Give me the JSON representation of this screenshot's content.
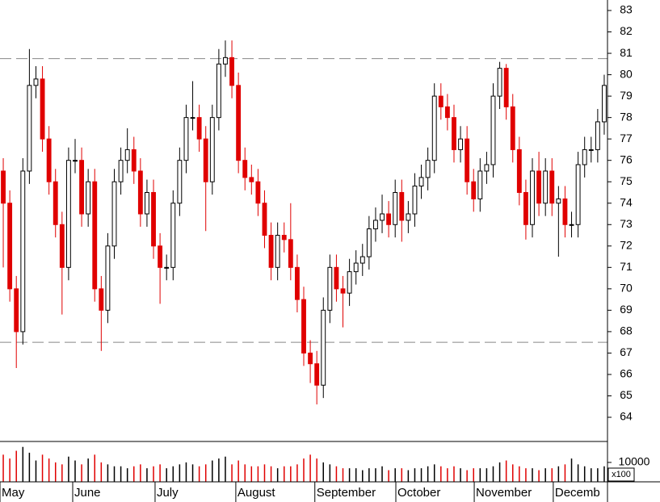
{
  "chart_data": {
    "type": "candlestick",
    "open": [
      75.5,
      74,
      70,
      68,
      75.5,
      79.5,
      79.8,
      77,
      75,
      73,
      71,
      76,
      76,
      73.5,
      75,
      70,
      69,
      72,
      75,
      76,
      76.5,
      75.5,
      73.5,
      74.5,
      72,
      71,
      71,
      74,
      76,
      78,
      78,
      77,
      75,
      78,
      80.5,
      80.8,
      79.5,
      76,
      75.2,
      75,
      74,
      72.5,
      71,
      72.5,
      72.3,
      71,
      69.5,
      67,
      66.5,
      65.5,
      69,
      71,
      70,
      69.8,
      70.8,
      71.2,
      71.5,
      72.8,
      73.2,
      73.5,
      73,
      74.5,
      73.2,
      73.5,
      74.8,
      75.2,
      76,
      79,
      78.5,
      78,
      76.5,
      77,
      75,
      74.2,
      75.5,
      75.8,
      79,
      80.3,
      78.5,
      76.5,
      74.5,
      73,
      75.5,
      74,
      75.5,
      74,
      74.2,
      73,
      73,
      75.8,
      76.5,
      76.5,
      77.8
    ],
    "high": [
      76.1,
      74.6,
      70.6,
      76.1,
      81.2,
      80.4,
      80.4,
      77.6,
      75.6,
      73.6,
      76.6,
      77,
      76.6,
      75.6,
      75.6,
      70.6,
      72.6,
      75.6,
      76.6,
      77.5,
      77.1,
      76.1,
      75.1,
      75.1,
      72.6,
      71.6,
      74.6,
      76.6,
      78.6,
      79.7,
      78.6,
      77.6,
      78.6,
      81.2,
      81.6,
      81.6,
      80.1,
      76.6,
      75.8,
      75.6,
      74.6,
      73.1,
      73.1,
      73.1,
      74,
      71.6,
      70.1,
      67.6,
      67.1,
      69.6,
      71.6,
      71.6,
      70.6,
      71.4,
      71.8,
      72.1,
      73.4,
      73.8,
      74.4,
      74.1,
      75.1,
      75.1,
      74.1,
      75.4,
      75.8,
      76.6,
      79.6,
      79.6,
      79.1,
      78.6,
      77.6,
      77.6,
      75.6,
      76.1,
      76.4,
      79.6,
      80.6,
      80.5,
      79.1,
      77.1,
      75.1,
      76.1,
      76.4,
      76.1,
      76.1,
      74.8,
      74.8,
      73.6,
      76.4,
      77.1,
      77.1,
      78.4,
      80
    ],
    "low": [
      71,
      69.4,
      66.3,
      67.4,
      74.9,
      78.9,
      76.4,
      74.4,
      72.4,
      68.8,
      70.4,
      75.4,
      72.9,
      72.9,
      69.4,
      67.1,
      68.4,
      71.4,
      74.4,
      75.4,
      74.9,
      72.9,
      72.9,
      71.4,
      69.3,
      70.4,
      70.4,
      73.4,
      75.4,
      77.4,
      76.4,
      72.7,
      74.4,
      77.4,
      79.9,
      78.9,
      75.4,
      74.6,
      74.4,
      73.4,
      71.9,
      70.4,
      70.4,
      71.7,
      70.4,
      68.9,
      66.4,
      65.6,
      64.6,
      64.9,
      68.4,
      69.4,
      68.2,
      69.2,
      70.2,
      70.6,
      70.9,
      72.2,
      72.6,
      72.4,
      72.4,
      72.2,
      72.6,
      72.9,
      74.2,
      74.6,
      75.4,
      77.9,
      77.4,
      75.9,
      75.9,
      74.4,
      73.6,
      73.6,
      74.9,
      75.2,
      78.4,
      77.9,
      75.9,
      73.9,
      72.3,
      72.4,
      73.4,
      73.4,
      73.4,
      71.5,
      72.4,
      72.4,
      72.4,
      75.2,
      75.9,
      75.9,
      77.2
    ],
    "close": [
      74,
      70,
      68,
      75.5,
      79.5,
      79.8,
      77,
      75,
      73,
      71,
      76,
      76,
      73.5,
      75,
      70,
      69,
      72,
      75,
      76,
      76.5,
      75.5,
      73.5,
      74.5,
      72,
      71,
      71,
      74,
      76,
      78,
      78,
      77,
      75,
      78,
      80.5,
      80.8,
      79.5,
      76,
      75.2,
      75,
      74,
      72.5,
      71,
      72.5,
      72.3,
      71,
      69.5,
      67,
      66.5,
      65.5,
      69,
      71,
      70,
      69.8,
      70.8,
      71.2,
      71.5,
      72.8,
      73.2,
      73.5,
      73,
      74.5,
      73.2,
      73.5,
      74.8,
      75.2,
      76,
      79,
      78.5,
      78,
      76.5,
      77,
      75,
      74.2,
      75.5,
      75.8,
      79,
      80.3,
      78.5,
      76.5,
      74.5,
      73,
      75.5,
      74,
      75.5,
      74,
      74.2,
      73,
      73,
      75.8,
      76.5,
      76.5,
      77.8,
      79.5
    ],
    "volume": [
      14000,
      12000,
      16000,
      18000,
      15000,
      11000,
      14000,
      12000,
      10000,
      9000,
      13000,
      11000,
      9000,
      12000,
      14000,
      10000,
      9000,
      8000,
      8000,
      7000,
      8000,
      9000,
      7000,
      8000,
      9000,
      7000,
      8000,
      9000,
      10000,
      9000,
      8000,
      9000,
      11000,
      12000,
      13000,
      9000,
      11000,
      9000,
      8000,
      8000,
      9000,
      8000,
      7000,
      8000,
      8000,
      9000,
      12000,
      14000,
      12000,
      10000,
      9000,
      8000,
      7000,
      7000,
      7000,
      6000,
      7000,
      7000,
      8000,
      6000,
      7000,
      7000,
      6000,
      7000,
      7000,
      8000,
      9000,
      8000,
      7000,
      8000,
      7000,
      6000,
      7000,
      7000,
      7000,
      8000,
      10000,
      11000,
      9000,
      8000,
      7000,
      7000,
      6000,
      7000,
      7000,
      8000,
      9000,
      12000,
      9000,
      8000,
      7000,
      7000,
      8000
    ],
    "up_color": "#ffffff",
    "down_color": "#e00000",
    "xlim": [
      -0.5,
      92.5
    ],
    "xticks": [
      {
        "value": -0.5,
        "label": "May"
      },
      {
        "value": 10.63,
        "label": "June"
      },
      {
        "value": 23.24,
        "label": "July"
      },
      {
        "value": 35.6,
        "label": "August"
      },
      {
        "value": 47.7,
        "label": "September"
      },
      {
        "value": 60.1,
        "label": "October"
      },
      {
        "value": 72.1,
        "label": "November"
      },
      {
        "value": 84.2,
        "label": "Decemb"
      }
    ],
    "ylim": [
      62.87,
      83.49
    ],
    "yticks": [
      64,
      65,
      66,
      67,
      68,
      69,
      70,
      71,
      72,
      73,
      74,
      75,
      76,
      77,
      78,
      79,
      80,
      81,
      82,
      83
    ],
    "reference_lines": [
      80.75,
      67.5
    ],
    "volume_ylim": [
      0,
      20800
    ],
    "volume_yticks": [
      10000
    ],
    "volume_unit": "x100"
  }
}
